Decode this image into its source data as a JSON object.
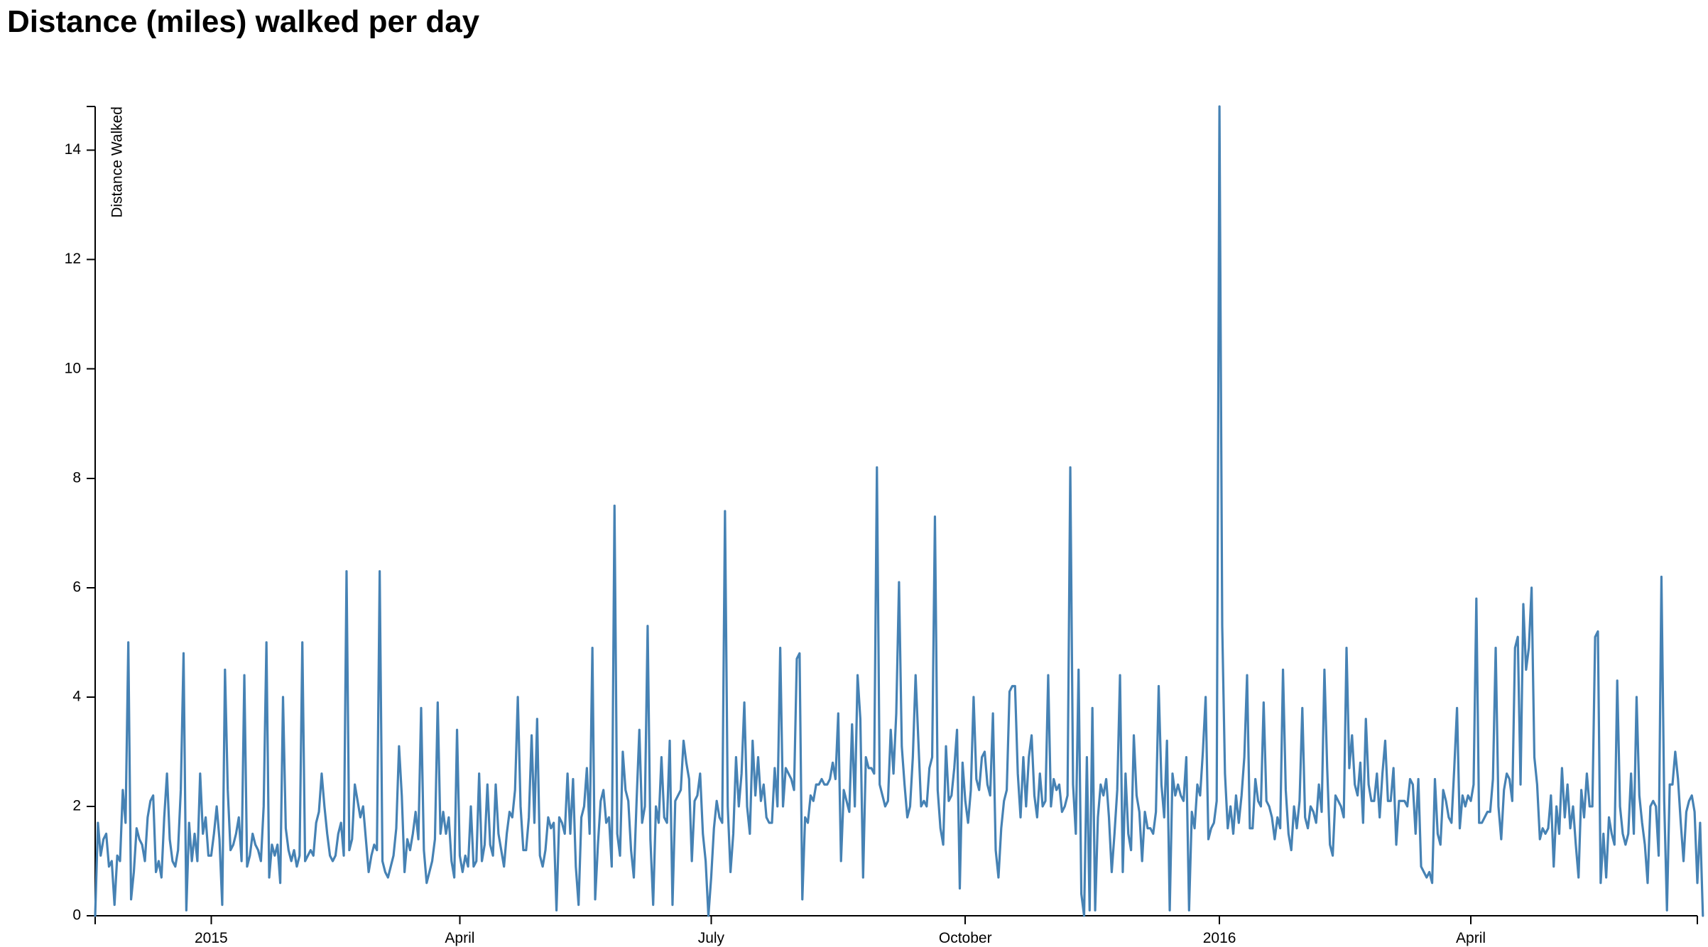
{
  "title": "Distance (miles) walked per day",
  "chart_data": {
    "type": "line",
    "title": "Distance (miles) walked per day",
    "xlabel": "",
    "ylabel": "Distance Walked",
    "xlim": [
      "2014-11-20",
      "2016-06-22"
    ],
    "ylim": [
      0,
      14.8
    ],
    "grid": false,
    "line_color": "#4682b4",
    "x_ticks": [
      {
        "date": "2015-01-01",
        "label": "2015"
      },
      {
        "date": "2015-04-01",
        "label": "April"
      },
      {
        "date": "2015-07-01",
        "label": "July"
      },
      {
        "date": "2015-10-01",
        "label": "October"
      },
      {
        "date": "2016-01-01",
        "label": "2016"
      },
      {
        "date": "2016-04-01",
        "label": "April"
      }
    ],
    "y_ticks": [
      0,
      2,
      4,
      6,
      8,
      10,
      12,
      14
    ],
    "start_date": "2014-11-20",
    "series": [
      {
        "values": [
          0.0,
          1.7,
          1.1,
          1.4,
          1.5,
          0.9,
          1.0,
          0.2,
          1.1,
          1.0,
          2.3,
          1.7,
          5.0,
          0.3,
          0.8,
          1.6,
          1.4,
          1.3,
          1.0,
          1.8,
          2.1,
          2.2,
          0.8,
          1.0,
          0.7,
          1.8,
          2.6,
          1.4,
          1.0,
          0.9,
          1.2,
          2.3,
          4.8,
          0.1,
          1.7,
          1.0,
          1.5,
          1.0,
          2.6,
          1.5,
          1.8,
          1.1,
          1.1,
          1.5,
          2.0,
          1.4,
          0.2,
          4.5,
          2.3,
          1.2,
          1.3,
          1.5,
          1.8,
          1.0,
          4.4,
          0.9,
          1.1,
          1.5,
          1.3,
          1.2,
          1.0,
          2.0,
          5.0,
          0.7,
          1.3,
          1.1,
          1.3,
          0.6,
          4.0,
          1.6,
          1.2,
          1.0,
          1.2,
          0.9,
          1.1,
          5.0,
          1.0,
          1.1,
          1.2,
          1.1,
          1.7,
          1.9,
          2.6,
          2.0,
          1.5,
          1.1,
          1.0,
          1.1,
          1.5,
          1.7,
          1.1,
          6.3,
          1.2,
          1.4,
          2.4,
          2.1,
          1.8,
          2.0,
          1.4,
          0.8,
          1.1,
          1.3,
          1.2,
          6.3,
          1.0,
          0.8,
          0.7,
          0.9,
          1.1,
          1.6,
          3.1,
          2.2,
          0.8,
          1.4,
          1.2,
          1.5,
          1.9,
          1.4,
          3.8,
          1.2,
          0.6,
          0.8,
          1.0,
          1.4,
          3.9,
          1.5,
          1.9,
          1.5,
          1.8,
          1.0,
          0.7,
          3.4,
          1.1,
          0.8,
          1.1,
          0.9,
          2.0,
          0.9,
          1.0,
          2.6,
          1.0,
          1.3,
          2.4,
          1.3,
          1.1,
          2.4,
          1.5,
          1.2,
          0.9,
          1.5,
          1.9,
          1.8,
          2.3,
          4.0,
          2.0,
          1.2,
          1.2,
          1.8,
          3.3,
          1.7,
          3.6,
          1.1,
          0.9,
          1.2,
          1.8,
          1.6,
          1.7,
          0.1,
          1.8,
          1.7,
          1.5,
          2.6,
          1.5,
          2.5,
          0.9,
          0.2,
          1.8,
          2.0,
          2.7,
          1.5,
          4.9,
          0.3,
          1.3,
          2.1,
          2.3,
          1.7,
          1.8,
          0.9,
          7.5,
          1.5,
          1.1,
          3.0,
          2.3,
          2.1,
          1.2,
          0.7,
          2.1,
          3.4,
          1.7,
          2.0,
          5.3,
          1.4,
          0.2,
          2.0,
          1.7,
          2.9,
          1.8,
          1.7,
          3.2,
          0.2,
          2.1,
          2.2,
          2.3,
          3.2,
          2.8,
          2.5,
          1.0,
          2.1,
          2.2,
          2.6,
          1.5,
          1.0,
          0.0,
          0.7,
          1.6,
          2.1,
          1.8,
          1.7,
          7.4,
          2.0,
          0.8,
          1.5,
          2.9,
          2.0,
          2.6,
          3.9,
          2.0,
          1.5,
          3.2,
          2.2,
          2.9,
          2.1,
          2.4,
          1.8,
          1.7,
          1.7,
          2.7,
          2.0,
          4.9,
          2.0,
          2.7,
          2.6,
          2.5,
          2.3,
          4.7,
          4.8,
          0.3,
          1.8,
          1.7,
          2.2,
          2.1,
          2.4,
          2.4,
          2.5,
          2.4,
          2.4,
          2.5,
          2.8,
          2.5,
          3.7,
          1.0,
          2.3,
          2.1,
          1.9,
          3.5,
          2.0,
          4.4,
          3.6,
          0.7,
          2.9,
          2.7,
          2.7,
          2.6,
          8.2,
          2.4,
          2.2,
          2.0,
          2.1,
          3.4,
          2.6,
          3.7,
          6.1,
          3.1,
          2.4,
          1.8,
          2.0,
          2.9,
          4.4,
          3.2,
          2.0,
          2.1,
          2.0,
          2.7,
          2.9,
          7.3,
          2.3,
          1.6,
          1.3,
          3.1,
          2.1,
          2.2,
          2.7,
          3.4,
          0.5,
          2.8,
          2.1,
          1.7,
          2.3,
          4.0,
          2.5,
          2.3,
          2.9,
          3.0,
          2.4,
          2.2,
          3.7,
          1.2,
          0.7,
          1.6,
          2.1,
          2.3,
          4.1,
          4.2,
          4.2,
          2.6,
          1.8,
          2.9,
          2.0,
          2.9,
          3.3,
          2.2,
          1.8,
          2.6,
          2.0,
          2.1,
          4.4,
          2.0,
          2.5,
          2.3,
          2.4,
          1.9,
          2.0,
          2.2,
          8.2,
          2.4,
          1.5,
          4.5,
          0.4,
          0.0,
          2.9,
          0.1,
          3.8,
          0.1,
          1.8,
          2.4,
          2.2,
          2.5,
          1.8,
          0.8,
          1.5,
          2.3,
          4.4,
          0.8,
          2.6,
          1.5,
          1.2,
          3.3,
          2.2,
          1.9,
          1.0,
          1.9,
          1.6,
          1.6,
          1.5,
          1.9,
          4.2,
          2.4,
          1.8,
          3.2,
          0.1,
          2.6,
          2.2,
          2.4,
          2.2,
          2.1,
          2.9,
          0.1,
          1.9,
          1.6,
          2.4,
          2.2,
          3.0,
          4.0,
          1.4,
          1.6,
          1.7,
          2.1,
          14.8,
          5.3,
          2.6,
          1.6,
          2.0,
          1.5,
          2.2,
          1.7,
          2.2,
          2.9,
          4.4,
          1.6,
          1.6,
          2.5,
          2.1,
          2.0,
          3.9,
          2.1,
          2.0,
          1.8,
          1.4,
          1.8,
          1.6,
          4.5,
          2.3,
          1.5,
          1.2,
          2.0,
          1.6,
          2.1,
          3.8,
          1.8,
          1.6,
          2.0,
          1.9,
          1.7,
          2.4,
          1.9,
          4.5,
          2.7,
          1.3,
          1.1,
          2.2,
          2.1,
          2.0,
          1.8,
          4.9,
          2.7,
          3.3,
          2.4,
          2.2,
          2.8,
          1.7,
          3.6,
          2.4,
          2.1,
          2.1,
          2.6,
          1.8,
          2.6,
          3.2,
          2.1,
          2.1,
          2.7,
          1.3,
          2.1,
          2.1,
          2.1,
          2.0,
          2.5,
          2.4,
          1.5,
          2.5,
          0.9,
          0.8,
          0.7,
          0.8,
          0.6,
          2.5,
          1.5,
          1.3,
          2.3,
          2.1,
          1.8,
          1.7,
          2.7,
          3.8,
          1.6,
          2.2,
          2.0,
          2.2,
          2.1,
          2.4,
          5.8,
          1.7,
          1.7,
          1.8,
          1.9,
          1.9,
          2.5,
          4.9,
          2.0,
          1.4,
          2.3,
          2.6,
          2.5,
          2.1,
          4.9,
          5.1,
          2.4,
          5.7,
          4.5,
          4.9,
          6.0,
          2.9,
          2.4,
          1.4,
          1.6,
          1.5,
          1.6,
          2.2,
          0.9,
          2.0,
          1.5,
          2.7,
          1.8,
          2.4,
          1.6,
          2.0,
          1.3,
          0.7,
          2.3,
          1.8,
          2.6,
          2.0,
          2.0,
          5.1,
          5.2,
          0.6,
          1.5,
          0.7,
          1.8,
          1.5,
          1.3,
          4.3,
          2.0,
          1.5,
          1.3,
          1.5,
          2.6,
          1.5,
          4.0,
          2.2,
          1.7,
          1.3,
          0.6,
          2.0,
          2.1,
          2.0,
          1.1,
          6.2,
          2.1,
          0.1,
          2.4,
          2.4,
          3.0,
          2.5,
          1.7,
          1.0,
          1.9,
          2.1,
          2.2,
          1.9,
          0.6,
          1.7,
          0.0
        ]
      }
    ]
  }
}
